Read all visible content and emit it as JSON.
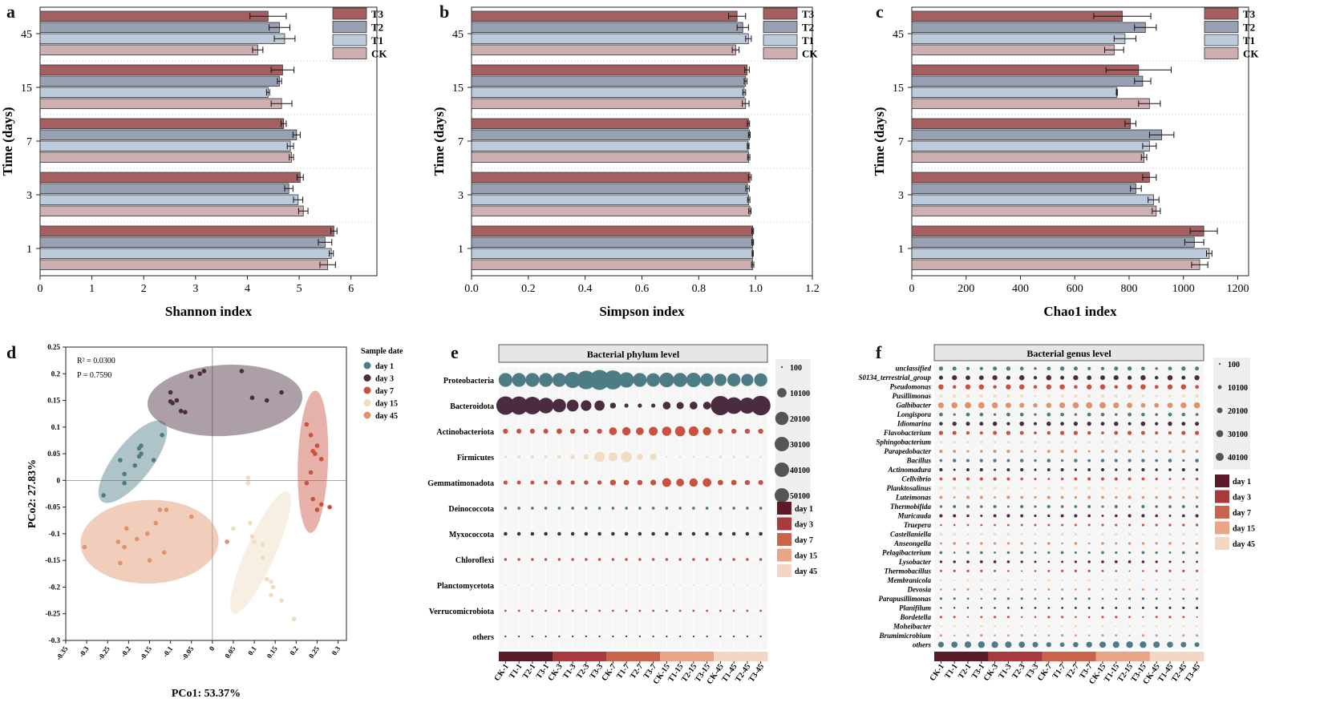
{
  "colors": {
    "T3": "#a65f60",
    "T2": "#98a0b3",
    "T1": "#bccbdc",
    "CK": "#cfb0b2",
    "day1": "#4c7c86",
    "day3": "#4a2b3f",
    "day7": "#c8513f",
    "day15": "#f0dcc0",
    "day45": "#e0926a",
    "hm_day1": "#5c1a28",
    "hm_day3": "#a83a3e",
    "hm_day7": "#c8644c",
    "hm_day15": "#e9a585",
    "hm_day45": "#f4d6c4"
  },
  "panel_labels": {
    "a": "a",
    "b": "b",
    "c": "c",
    "d": "d",
    "e": "e",
    "f": "f"
  },
  "chart_data": [
    {
      "id": "a",
      "type": "bar",
      "orientation": "horizontal",
      "ylabel": "Time (days)",
      "xlabel": "Shannon index",
      "categories": [
        "45",
        "15",
        "7",
        "3",
        "1"
      ],
      "xlim": [
        0,
        6.5
      ],
      "xticks": [
        0,
        1,
        2,
        3,
        4,
        5,
        6
      ],
      "series": [
        {
          "name": "T3",
          "values": [
            4.4,
            4.68,
            4.7,
            5.02,
            5.67
          ],
          "err": [
            0.35,
            0.22,
            0.05,
            0.06,
            0.06
          ]
        },
        {
          "name": "T2",
          "values": [
            4.62,
            4.62,
            4.95,
            4.8,
            5.5
          ],
          "err": [
            0.2,
            0.04,
            0.07,
            0.08,
            0.13
          ]
        },
        {
          "name": "T1",
          "values": [
            4.72,
            4.4,
            4.83,
            4.98,
            5.62
          ],
          "err": [
            0.2,
            0.03,
            0.06,
            0.09,
            0.04
          ]
        },
        {
          "name": "CK",
          "values": [
            4.2,
            4.66,
            4.85,
            5.08,
            5.55
          ],
          "err": [
            0.1,
            0.2,
            0.04,
            0.09,
            0.15
          ]
        }
      ]
    },
    {
      "id": "b",
      "type": "bar",
      "orientation": "horizontal",
      "ylabel": "Time (days)",
      "xlabel": "Simpson index",
      "categories": [
        "45",
        "15",
        "7",
        "3",
        "1"
      ],
      "xlim": [
        0,
        1.2
      ],
      "xticks": [
        "0.0",
        "0.2",
        "0.4",
        "0.6",
        "0.8",
        "1.0",
        "1.2"
      ],
      "series": [
        {
          "name": "T3",
          "values": [
            0.935,
            0.97,
            0.975,
            0.98,
            0.99
          ],
          "err": [
            0.03,
            0.008,
            0.004,
            0.005,
            0.003
          ]
        },
        {
          "name": "T2",
          "values": [
            0.955,
            0.965,
            0.978,
            0.972,
            0.99
          ],
          "err": [
            0.02,
            0.005,
            0.003,
            0.006,
            0.003
          ]
        },
        {
          "name": "T1",
          "values": [
            0.975,
            0.96,
            0.974,
            0.976,
            0.99
          ],
          "err": [
            0.01,
            0.005,
            0.003,
            0.004,
            0.002
          ]
        },
        {
          "name": "CK",
          "values": [
            0.93,
            0.965,
            0.976,
            0.98,
            0.99
          ],
          "err": [
            0.012,
            0.012,
            0.004,
            0.004,
            0.004
          ]
        }
      ]
    },
    {
      "id": "c",
      "type": "bar",
      "orientation": "horizontal",
      "ylabel": "Time (days)",
      "xlabel": "Chao1 index",
      "categories": [
        "45",
        "15",
        "7",
        "3",
        "1"
      ],
      "xlim": [
        0,
        1240
      ],
      "xticks": [
        0,
        200,
        400,
        600,
        800,
        1000,
        1200
      ],
      "series": [
        {
          "name": "T3",
          "values": [
            775,
            835,
            805,
            875,
            1075
          ],
          "err": [
            105,
            120,
            20,
            25,
            50
          ]
        },
        {
          "name": "T2",
          "values": [
            860,
            850,
            920,
            825,
            1040
          ],
          "err": [
            40,
            30,
            45,
            20,
            35
          ]
        },
        {
          "name": "T1",
          "values": [
            785,
            755,
            875,
            890,
            1095
          ],
          "err": [
            40,
            2,
            25,
            20,
            10
          ]
        },
        {
          "name": "CK",
          "values": [
            745,
            875,
            855,
            900,
            1060
          ],
          "err": [
            35,
            40,
            10,
            15,
            30
          ]
        }
      ]
    },
    {
      "id": "d",
      "type": "scatter",
      "xlabel": "PCo1: 53.37%",
      "ylabel": "PCo2: 27.83%",
      "xlim": [
        -0.35,
        0.32
      ],
      "ylim": [
        -0.3,
        0.25
      ],
      "xticks": [
        "-0.35",
        "-0.3",
        "-0.25",
        "-0.2",
        "-0.15",
        "-0.1",
        "-0.05",
        "0",
        "0.05",
        "0.1",
        "0.15",
        "0.2",
        "0.25",
        "0.3"
      ],
      "yticks": [
        "0.25",
        "0.2",
        "0.15",
        "0.1",
        "0.05",
        "0",
        "-0.05",
        "-0.1",
        "-0.15",
        "-0.2",
        "-0.25",
        "-0.3"
      ],
      "annotations": [
        "R² = 0.0300",
        "P = 0.7590"
      ],
      "legend_title": "Sample date",
      "series": [
        {
          "name": "day 1",
          "points": [
            [
              -0.26,
              -0.028
            ],
            [
              -0.22,
              0.038
            ],
            [
              -0.21,
              0.012
            ],
            [
              -0.21,
              -0.005
            ],
            [
              -0.185,
              0.028
            ],
            [
              -0.175,
              0.06
            ],
            [
              -0.17,
              0.065
            ],
            [
              -0.175,
              0.045
            ],
            [
              -0.14,
              0.038
            ],
            [
              -0.12,
              0.085
            ],
            [
              -0.17,
              0.05
            ]
          ]
        },
        {
          "name": "day 3",
          "points": [
            [
              -0.1,
              0.165
            ],
            [
              -0.095,
              0.145
            ],
            [
              -0.085,
              0.15
            ],
            [
              -0.075,
              0.13
            ],
            [
              -0.065,
              0.128
            ],
            [
              -0.05,
              0.195
            ],
            [
              -0.03,
              0.2
            ],
            [
              -0.02,
              0.205
            ],
            [
              0.07,
              0.205
            ],
            [
              0.095,
              0.155
            ],
            [
              0.13,
              0.15
            ],
            [
              0.165,
              0.165
            ],
            [
              -0.1,
              0.148
            ]
          ]
        },
        {
          "name": "day 7",
          "points": [
            [
              0.225,
              0.105
            ],
            [
              0.235,
              0.085
            ],
            [
              0.24,
              0.055
            ],
            [
              0.245,
              0.05
            ],
            [
              0.235,
              0.015
            ],
            [
              0.225,
              -0.005
            ],
            [
              0.25,
              0.065
            ],
            [
              0.26,
              0.04
            ],
            [
              0.24,
              -0.035
            ],
            [
              0.25,
              -0.055
            ],
            [
              0.26,
              -0.045
            ],
            [
              0.28,
              -0.05
            ]
          ]
        },
        {
          "name": "day 15",
          "points": [
            [
              0.085,
              0.005
            ],
            [
              0.085,
              -0.005
            ],
            [
              0.09,
              -0.08
            ],
            [
              0.095,
              -0.105
            ],
            [
              0.1,
              -0.115
            ],
            [
              0.12,
              -0.145
            ],
            [
              0.13,
              -0.185
            ],
            [
              0.14,
              -0.19
            ],
            [
              0.145,
              -0.2
            ],
            [
              0.14,
              -0.215
            ],
            [
              0.165,
              -0.225
            ],
            [
              0.195,
              -0.26
            ],
            [
              0.12,
              -0.12
            ],
            [
              0.05,
              -0.09
            ]
          ]
        },
        {
          "name": "day 45",
          "points": [
            [
              -0.305,
              -0.125
            ],
            [
              -0.225,
              -0.115
            ],
            [
              -0.22,
              -0.155
            ],
            [
              -0.21,
              -0.125
            ],
            [
              -0.18,
              -0.11
            ],
            [
              -0.155,
              -0.1
            ],
            [
              -0.15,
              -0.15
            ],
            [
              -0.135,
              -0.08
            ],
            [
              -0.125,
              -0.055
            ],
            [
              -0.11,
              -0.055
            ],
            [
              -0.05,
              -0.068
            ],
            [
              -0.115,
              -0.135
            ],
            [
              -0.205,
              -0.09
            ],
            [
              0.035,
              -0.115
            ]
          ]
        }
      ],
      "ellipses": [
        {
          "name": "day 1",
          "cx": -0.19,
          "cy": 0.035,
          "rx": 0.12,
          "ry": 0.045,
          "angle": -52
        },
        {
          "name": "day 3",
          "cx": 0.03,
          "cy": 0.15,
          "rx": 0.185,
          "ry": 0.085,
          "angle": -3
        },
        {
          "name": "day 7",
          "cx": 0.24,
          "cy": 0.035,
          "rx": 0.17,
          "ry": 0.036,
          "angle": -88
        },
        {
          "name": "day 15",
          "cx": 0.115,
          "cy": -0.135,
          "rx": 0.16,
          "ry": 0.035,
          "angle": -66
        },
        {
          "name": "day 45",
          "cx": -0.15,
          "cy": -0.115,
          "rx": 0.165,
          "ry": 0.1,
          "angle": -2
        }
      ]
    },
    {
      "id": "e",
      "type": "scatter",
      "title": "Bacterial phylum level",
      "categories": [
        "CK-1",
        "T1-1",
        "T2-1",
        "T3-1",
        "CK-3",
        "T1-3",
        "T2-3",
        "T3-3",
        "CK-7",
        "T1-7",
        "T2-7",
        "T3-7",
        "CK-15",
        "T1-15",
        "T2-15",
        "T3-15",
        "CK-45",
        "T1-45",
        "T2-45",
        "T3-45"
      ],
      "rows": [
        "Proteobacteria",
        "Bacteroidota",
        "Actinobacteriota",
        "Firmicutes",
        "Gemmatimonadota",
        "Deinococcota",
        "Myxococcota",
        "Chloroflexi",
        "Planctomycetota",
        "Verrucomicrobiota",
        "others"
      ],
      "row_colors": [
        "day1",
        "day3",
        "day7",
        "day15",
        "day7",
        "day1",
        "day3",
        "day7",
        "day15",
        "day7",
        "day3"
      ],
      "values": [
        [
          22000,
          22000,
          22000,
          22000,
          22000,
          30000,
          40000,
          46000,
          42000,
          27000,
          22000,
          21000,
          25000,
          23000,
          24000,
          20000,
          17000,
          20000,
          17000,
          20000
        ],
        [
          39000,
          38000,
          36000,
          28000,
          21000,
          16000,
          13000,
          12000,
          4000,
          2000,
          2000,
          2000,
          7000,
          6000,
          7000,
          7000,
          43000,
          32000,
          30000,
          44000
        ],
        [
          3000,
          2800,
          2800,
          2800,
          3500,
          3000,
          3000,
          3000,
          7000,
          8000,
          7000,
          9000,
          10000,
          12000,
          11000,
          8000,
          3000,
          3000,
          3000,
          3000
        ],
        [
          800,
          1200,
          1600,
          1300,
          1800,
          2500,
          3000,
          12000,
          9000,
          13000,
          4500,
          5000,
          500,
          500,
          500,
          500,
          800,
          800,
          800,
          600
        ],
        [
          2000,
          1800,
          1800,
          1800,
          2800,
          2000,
          2200,
          2200,
          4000,
          3500,
          3200,
          3800,
          9000,
          7000,
          8000,
          8500,
          3500,
          3500,
          3000,
          2800
        ],
        [
          1000,
          1000,
          1000,
          1000,
          1000,
          1000,
          1000,
          1000,
          1000,
          1000,
          1000,
          1000,
          1000,
          1000,
          1000,
          1000,
          1000,
          1000,
          1000,
          1000
        ],
        [
          1500,
          1500,
          1500,
          1500,
          1500,
          1500,
          1500,
          1500,
          1500,
          1500,
          1500,
          1500,
          1500,
          1500,
          1500,
          1500,
          1500,
          1500,
          1500,
          1500
        ],
        [
          900,
          900,
          900,
          900,
          900,
          900,
          900,
          900,
          900,
          900,
          900,
          900,
          900,
          900,
          900,
          900,
          900,
          900,
          900,
          900
        ],
        [
          300,
          300,
          300,
          300,
          300,
          300,
          300,
          300,
          300,
          300,
          300,
          300,
          300,
          300,
          300,
          300,
          300,
          300,
          300,
          300
        ],
        [
          600,
          600,
          600,
          600,
          600,
          600,
          600,
          600,
          600,
          600,
          600,
          600,
          600,
          600,
          600,
          600,
          600,
          600,
          600,
          600
        ],
        [
          200,
          200,
          200,
          200,
          200,
          200,
          200,
          200,
          200,
          200,
          200,
          200,
          200,
          200,
          200,
          200,
          200,
          200,
          200,
          200
        ]
      ],
      "size_legend": [
        "100",
        "10100",
        "20100",
        "30100",
        "40100",
        "50100"
      ],
      "date_legend": [
        "day 1",
        "day 3",
        "day 7",
        "day 15",
        "day 45"
      ]
    },
    {
      "id": "f",
      "type": "scatter",
      "title": "Bacterial genus level",
      "categories": [
        "CK-1",
        "T1-1",
        "T2-1",
        "T3-1",
        "CK-3",
        "T1-3",
        "T2-3",
        "T3-3",
        "CK-7",
        "T1-7",
        "T2-7",
        "T3-7",
        "CK-15",
        "T1-15",
        "T2-15",
        "T3-15",
        "CK-45",
        "T1-45",
        "T2-45",
        "T3-45"
      ],
      "rows": [
        "unclassified",
        "S0134_terrestrial_group",
        "Pseudomonas",
        "Pusillimonas",
        "Galbibacter",
        "Longispora",
        "Idiomarina",
        "Flavobacterium",
        "Sphingobacterium",
        "Parapedobacter",
        "Bacillus",
        "Actinomadura",
        "Cellvibrio",
        "Planktosalinus",
        "Luteimonas",
        "Thermobifida",
        "Muricauda",
        "Truepera",
        "Castellaniella",
        "Anseongella",
        "Pelagibacterium",
        "Lysobacter",
        "Thermobacillus",
        "Membranicola",
        "Devosia",
        "Parapusillimonas",
        "Planifilum",
        "Bordetella",
        "Moheibacter",
        "Brumimicrobium",
        "others"
      ],
      "row_colors": [
        "day1",
        "day3",
        "day7",
        "day15",
        "day45",
        "day1",
        "day3",
        "day7",
        "day15",
        "day45",
        "day1",
        "day3",
        "day7",
        "day15",
        "day45",
        "day1",
        "day3",
        "day7",
        "day15",
        "day45",
        "day1",
        "day3",
        "day7",
        "day15",
        "day45",
        "day1",
        "day3",
        "day7",
        "day15",
        "day45",
        "day1"
      ],
      "row_sizes": [
        8000,
        12000,
        13000,
        6000,
        18000,
        7000,
        9000,
        8000,
        6000,
        5000,
        6000,
        5000,
        5000,
        5000,
        5000,
        5000,
        5000,
        4000,
        4000,
        4000,
        4000,
        4000,
        3000,
        3000,
        3000,
        3000,
        3000,
        3000,
        3000,
        3000,
        20000
      ],
      "size_legend": [
        "100",
        "10100",
        "20100",
        "30100",
        "40100"
      ],
      "date_legend": [
        "day 1",
        "day 3",
        "day 7",
        "day 15",
        "day 45"
      ]
    }
  ]
}
